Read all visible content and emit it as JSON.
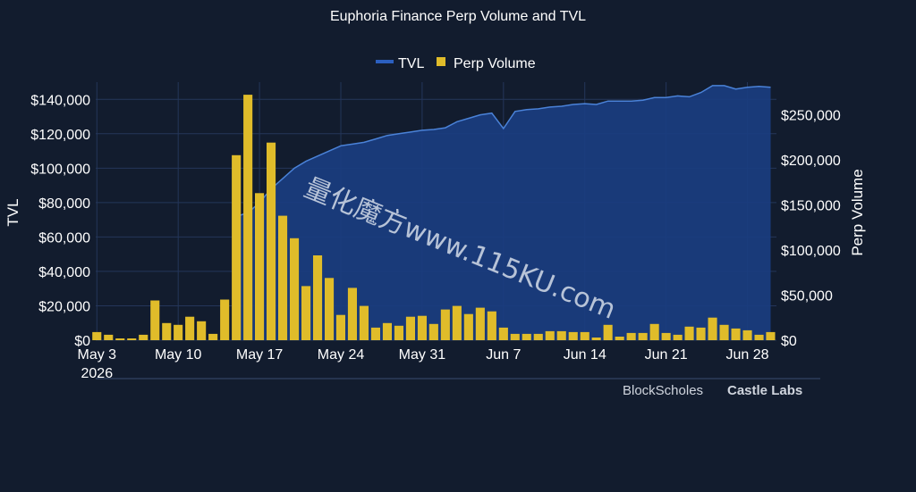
{
  "chart_data": {
    "type": "bar",
    "title": "Euphoria Finance Perp Volume and TVL",
    "y_left_label": "TVL",
    "y_right_label": "Perp Volume",
    "legend": {
      "placement": "top-center",
      "items": [
        {
          "name": "TVL",
          "color": "#2b5fbf"
        },
        {
          "name": "Perp Volume",
          "color": "#e0bc2a"
        }
      ]
    },
    "grid": true,
    "x_ticks": [
      "May 3",
      "May 10",
      "May 17",
      "May 24",
      "May 31",
      "Jun 7",
      "Jun 14",
      "Jun 21",
      "Jun 28"
    ],
    "x_year_label": "2026",
    "x_range_dates": [
      "2026-05-03",
      "2026-06-30"
    ],
    "left_ticks": [
      "$0",
      "$20,000",
      "$40,000",
      "$60,000",
      "$80,000",
      "$100,000",
      "$120,000",
      "$140,000"
    ],
    "left_ylim": [
      0,
      150000
    ],
    "right_ticks": [
      "$0",
      "$50,000",
      "$100,000",
      "$150,000",
      "$200,000",
      "$250,000"
    ],
    "right_ylim": [
      0,
      286000
    ],
    "colors": {
      "background": "#121c2e",
      "grid": "#24365a",
      "tvl_fill": "#1a3d80",
      "tvl_line": "#4a82d8",
      "bars": "#e0bc2a"
    },
    "series": [
      {
        "name": "Perp Volume",
        "axis": "right",
        "dates": [
          "2026-05-03",
          "2026-05-04",
          "2026-05-05",
          "2026-05-06",
          "2026-05-07",
          "2026-05-08",
          "2026-05-09",
          "2026-05-10",
          "2026-05-11",
          "2026-05-12",
          "2026-05-13",
          "2026-05-14",
          "2026-05-15",
          "2026-05-16",
          "2026-05-17",
          "2026-05-18",
          "2026-05-19",
          "2026-05-20",
          "2026-05-21",
          "2026-05-22",
          "2026-05-23",
          "2026-05-24",
          "2026-05-25",
          "2026-05-26",
          "2026-05-27",
          "2026-05-28",
          "2026-05-29",
          "2026-05-30",
          "2026-05-31",
          "2026-06-01",
          "2026-06-02",
          "2026-06-03",
          "2026-06-04",
          "2026-06-05",
          "2026-06-06",
          "2026-06-07",
          "2026-06-08",
          "2026-06-09",
          "2026-06-10",
          "2026-06-11",
          "2026-06-12",
          "2026-06-13",
          "2026-06-14",
          "2026-06-15",
          "2026-06-16",
          "2026-06-17",
          "2026-06-18",
          "2026-06-19",
          "2026-06-20",
          "2026-06-21",
          "2026-06-22",
          "2026-06-23",
          "2026-06-24",
          "2026-06-25",
          "2026-06-26",
          "2026-06-27",
          "2026-06-28",
          "2026-06-29",
          "2026-06-30"
        ],
        "values": [
          9000,
          6000,
          2000,
          2000,
          6000,
          44000,
          19000,
          17000,
          26000,
          21000,
          7000,
          45000,
          205000,
          272000,
          163000,
          219000,
          138000,
          113000,
          60000,
          94000,
          69000,
          28000,
          58000,
          38000,
          14000,
          19000,
          16000,
          26000,
          27000,
          18000,
          34000,
          38000,
          29000,
          36000,
          32000,
          14000,
          7000,
          7000,
          7000,
          10000,
          10000,
          9000,
          9000,
          3000,
          17000,
          4000,
          8000,
          8000,
          18000,
          8000,
          6000,
          15000,
          14000,
          25000,
          17000,
          13000,
          11000,
          6000,
          9000
        ]
      },
      {
        "name": "TVL",
        "axis": "left",
        "dates": [
          "2026-05-15",
          "2026-05-16",
          "2026-05-17",
          "2026-05-18",
          "2026-05-19",
          "2026-05-20",
          "2026-05-21",
          "2026-05-22",
          "2026-05-23",
          "2026-05-24",
          "2026-05-25",
          "2026-05-26",
          "2026-05-27",
          "2026-05-28",
          "2026-05-29",
          "2026-05-30",
          "2026-05-31",
          "2026-06-01",
          "2026-06-02",
          "2026-06-03",
          "2026-06-04",
          "2026-06-05",
          "2026-06-06",
          "2026-06-07",
          "2026-06-08",
          "2026-06-09",
          "2026-06-10",
          "2026-06-11",
          "2026-06-12",
          "2026-06-13",
          "2026-06-14",
          "2026-06-15",
          "2026-06-16",
          "2026-06-17",
          "2026-06-18",
          "2026-06-19",
          "2026-06-20",
          "2026-06-21",
          "2026-06-22",
          "2026-06-23",
          "2026-06-24",
          "2026-06-25",
          "2026-06-26",
          "2026-06-27",
          "2026-06-28",
          "2026-06-29",
          "2026-06-30"
        ],
        "values": [
          72000,
          74000,
          80000,
          88000,
          94000,
          100000,
          104000,
          107000,
          110000,
          113000,
          114000,
          115000,
          117000,
          119000,
          120000,
          121000,
          122000,
          122500,
          123500,
          127000,
          129000,
          131000,
          132000,
          123000,
          133000,
          134000,
          134500,
          135500,
          136000,
          137000,
          137500,
          137000,
          139000,
          139000,
          139000,
          139500,
          141000,
          141000,
          142000,
          141500,
          144000,
          148000,
          148000,
          146000,
          147000,
          147500,
          147000
        ]
      }
    ]
  },
  "watermark": "量化魔方www.115KU.com",
  "logos": [
    "BlockScholes",
    "Castle Labs"
  ]
}
